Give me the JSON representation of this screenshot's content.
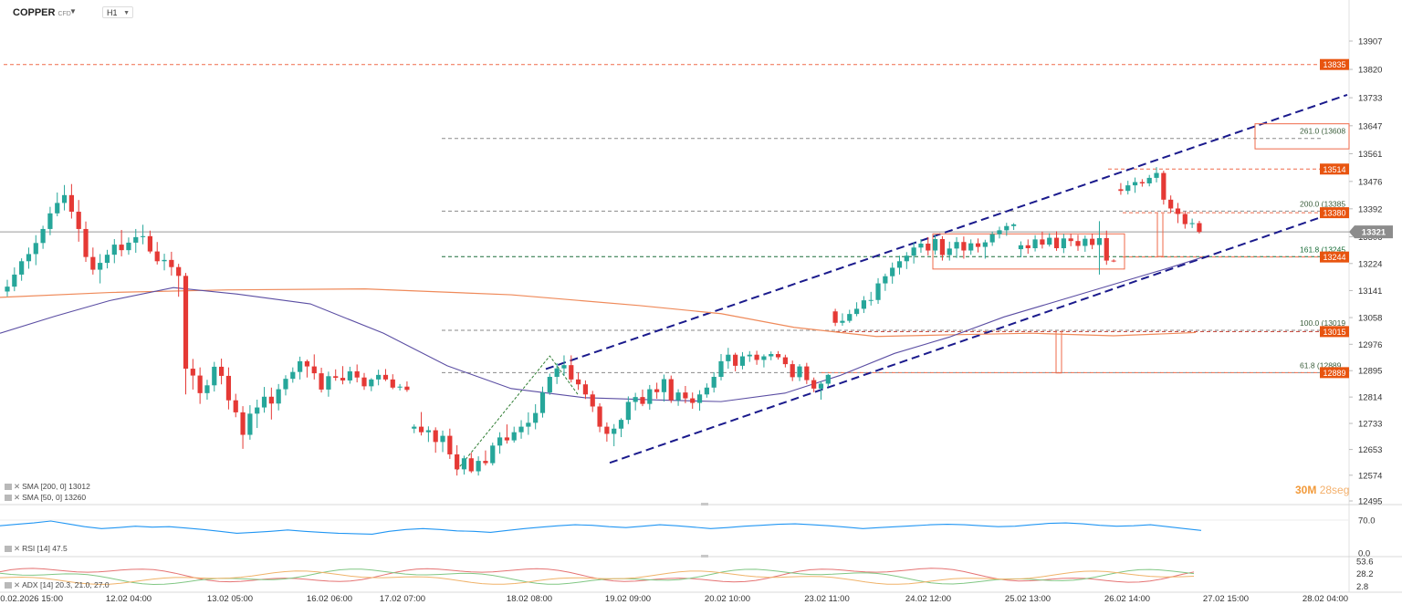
{
  "header": {
    "symbol": "COPPER",
    "symbol_sub": "CFD",
    "timeframe": "H1"
  },
  "indicators": {
    "sma200": "SMA [200, 0]  13012",
    "sma50": "SMA [50, 0]  13260",
    "rsi": "RSI [14]  47.5",
    "adx": "ADX [14]  20.3, 21.0, 27.0"
  },
  "countdown": {
    "main": "30M",
    "sec": "28seg"
  },
  "colors": {
    "up": "#26a69a",
    "down": "#e53935",
    "sma200": "#ef8a5a",
    "sma50": "#5b4ea3",
    "channel": "#1a1a8c",
    "label_bg": "#e8540f",
    "rsi": "#2196f3"
  },
  "chart_data": {
    "type": "candlestick",
    "symbol": "COPPER",
    "timeframe": "H1",
    "y_ticks": [
      13907,
      13820,
      13733,
      13647,
      13561,
      13476,
      13392,
      13306,
      13224,
      13141,
      13058,
      12976,
      12895,
      12814,
      12733,
      12653,
      12574,
      12495
    ],
    "ylim": [
      12495,
      13907
    ],
    "x_labels": [
      "10.02.2026  15:00",
      "12.02  04:00",
      "13.02  05:00",
      "16.02  06:00",
      "17.02  07:00",
      "18.02  08:00",
      "19.02  09:00",
      "20.02  10:00",
      "23.02  11:00",
      "24.02  12:00",
      "25.02  13:00",
      "26.02  14:00",
      "27.02  15:00",
      "28.02  04:00"
    ],
    "last_price": 13321,
    "price_labels": [
      {
        "value": 13835,
        "text": "13835"
      },
      {
        "value": 13514,
        "text": "13514"
      },
      {
        "value": 13380,
        "text": "13380"
      },
      {
        "value": 13244,
        "text": "13244"
      },
      {
        "value": 13015,
        "text": "13015"
      },
      {
        "value": 12889,
        "text": "12889"
      }
    ],
    "fib_levels": [
      {
        "ratio": "261.0",
        "text": "261.0 (13608",
        "value": 13608
      },
      {
        "ratio": "200.0",
        "text": "200.0 (13385",
        "value": 13385
      },
      {
        "ratio": "161.8",
        "text": "161.8 (13245",
        "value": 13245
      },
      {
        "ratio": "100.0",
        "text": "100.0 (13019",
        "value": 13019
      },
      {
        "ratio": "61.8",
        "text": "61.8 (12889",
        "value": 12889
      }
    ],
    "sma": [
      {
        "name": "SMA [200, 0]",
        "value": 13012
      },
      {
        "name": "SMA [50, 0]",
        "value": 13260
      }
    ],
    "rsi": {
      "period": 14,
      "value": 47.5,
      "ticks": [
        "70.0",
        "0.0"
      ]
    },
    "adx": {
      "period": 14,
      "values": [
        20.3,
        21.0,
        27.0
      ],
      "ticks": [
        "53.6",
        "28.2",
        "2.8"
      ]
    },
    "candles": [
      [
        13138,
        13174,
        13123,
        13153
      ],
      [
        13153,
        13212,
        13139,
        13190
      ],
      [
        13190,
        13240,
        13171,
        13231
      ],
      [
        13231,
        13273,
        13208,
        13253
      ],
      [
        13253,
        13311,
        13219,
        13287
      ],
      [
        13287,
        13340,
        13269,
        13330
      ],
      [
        13330,
        13398,
        13311,
        13378
      ],
      [
        13378,
        13442,
        13369,
        13410
      ],
      [
        13410,
        13465,
        13387,
        13434
      ],
      [
        13434,
        13468,
        13362,
        13383
      ],
      [
        13383,
        13419,
        13291,
        13330
      ],
      [
        13330,
        13353,
        13229,
        13244
      ],
      [
        13244,
        13273,
        13190,
        13205
      ],
      [
        13205,
        13253,
        13163,
        13226
      ],
      [
        13226,
        13266,
        13209,
        13251
      ],
      [
        13251,
        13299,
        13225,
        13282
      ],
      [
        13282,
        13327,
        13246,
        13265
      ],
      [
        13265,
        13304,
        13251,
        13288
      ],
      [
        13288,
        13330,
        13257,
        13305
      ],
      [
        13305,
        13343,
        13283,
        13308
      ],
      [
        13308,
        13325,
        13255,
        13261
      ],
      [
        13261,
        13290,
        13221,
        13231
      ],
      [
        13231,
        13254,
        13203,
        13235
      ],
      [
        13235,
        13260,
        13187,
        13213
      ],
      [
        13213,
        13223,
        13122,
        13186
      ],
      [
        13186,
        13195,
        12822,
        12901
      ],
      [
        12901,
        12931,
        12837,
        12880
      ],
      [
        12880,
        12905,
        12793,
        12826
      ],
      [
        12826,
        12867,
        12806,
        12850
      ],
      [
        12850,
        12922,
        12831,
        12907
      ],
      [
        12907,
        12932,
        12853,
        12879
      ],
      [
        12879,
        12905,
        12776,
        12804
      ],
      [
        12804,
        12824,
        12752,
        12767
      ],
      [
        12767,
        12786,
        12655,
        12698
      ],
      [
        12698,
        12789,
        12683,
        12763
      ],
      [
        12763,
        12806,
        12719,
        12782
      ],
      [
        12782,
        12845,
        12766,
        12815
      ],
      [
        12815,
        12843,
        12745,
        12794
      ],
      [
        12794,
        12854,
        12773,
        12838
      ],
      [
        12838,
        12881,
        12819,
        12870
      ],
      [
        12870,
        12905,
        12858,
        12891
      ],
      [
        12891,
        12938,
        12868,
        12924
      ],
      [
        12924,
        12929,
        12874,
        12908
      ],
      [
        12908,
        12945,
        12868,
        12887
      ],
      [
        12887,
        12904,
        12828,
        12837
      ],
      [
        12837,
        12892,
        12815,
        12878
      ],
      [
        12878,
        12899,
        12864,
        12873
      ],
      [
        12873,
        12909,
        12853,
        12865
      ],
      [
        12865,
        12907,
        12855,
        12893
      ],
      [
        12893,
        12914,
        12859,
        12874
      ],
      [
        12874,
        12888,
        12836,
        12847
      ],
      [
        12847,
        12872,
        12832,
        12868
      ],
      [
        12868,
        12898,
        12850,
        12882
      ],
      [
        12882,
        12900,
        12863,
        12868
      ],
      [
        12868,
        12884,
        12838,
        12843
      ],
      [
        12843,
        12854,
        12834,
        12846
      ],
      [
        12846,
        12862,
        12830,
        12836
      ],
      [
        12717,
        12730,
        12703,
        12723
      ],
      [
        12723,
        12768,
        12696,
        12706
      ],
      [
        12706,
        12724,
        12676,
        12712
      ],
      [
        12712,
        12721,
        12643,
        12676
      ],
      [
        12676,
        12711,
        12645,
        12695
      ],
      [
        12695,
        12717,
        12624,
        12638
      ],
      [
        12638,
        12666,
        12573,
        12592
      ],
      [
        12592,
        12634,
        12576,
        12626
      ],
      [
        12626,
        12643,
        12581,
        12586
      ],
      [
        12586,
        12632,
        12573,
        12618
      ],
      [
        12618,
        12650,
        12604,
        12611
      ],
      [
        12611,
        12674,
        12604,
        12665
      ],
      [
        12665,
        12706,
        12640,
        12690
      ],
      [
        12690,
        12730,
        12671,
        12681
      ],
      [
        12681,
        12723,
        12674,
        12706
      ],
      [
        12706,
        12743,
        12686,
        12723
      ],
      [
        12723,
        12767,
        12698,
        12735
      ],
      [
        12735,
        12792,
        12715,
        12765
      ],
      [
        12765,
        12846,
        12751,
        12828
      ],
      [
        12828,
        12886,
        12821,
        12876
      ],
      [
        12876,
        12918,
        12854,
        12902
      ],
      [
        12902,
        12942,
        12880,
        12912
      ],
      [
        12912,
        12942,
        12859,
        12868
      ],
      [
        12868,
        12889,
        12836,
        12853
      ],
      [
        12853,
        12865,
        12808,
        12822
      ],
      [
        12822,
        12833,
        12768,
        12785
      ],
      [
        12785,
        12795,
        12706,
        12723
      ],
      [
        12723,
        12736,
        12677,
        12701
      ],
      [
        12701,
        12731,
        12663,
        12717
      ],
      [
        12717,
        12749,
        12691,
        12744
      ],
      [
        12744,
        12816,
        12731,
        12799
      ],
      [
        12799,
        12827,
        12773,
        12814
      ],
      [
        12814,
        12837,
        12786,
        12793
      ],
      [
        12793,
        12851,
        12775,
        12838
      ],
      [
        12838,
        12858,
        12809,
        12829
      ],
      [
        12829,
        12883,
        12800,
        12869
      ],
      [
        12869,
        12880,
        12796,
        12804
      ],
      [
        12804,
        12838,
        12787,
        12828
      ],
      [
        12828,
        12848,
        12795,
        12810
      ],
      [
        12810,
        12828,
        12778,
        12796
      ],
      [
        12796,
        12835,
        12772,
        12822
      ],
      [
        12822,
        12856,
        12812,
        12843
      ],
      [
        12843,
        12890,
        12828,
        12876
      ],
      [
        12876,
        12946,
        12865,
        12924
      ],
      [
        12924,
        12965,
        12901,
        12944
      ],
      [
        12944,
        12950,
        12893,
        12910
      ],
      [
        12910,
        12952,
        12899,
        12939
      ],
      [
        12939,
        12955,
        12922,
        12944
      ],
      [
        12944,
        12956,
        12913,
        12928
      ],
      [
        12928,
        12945,
        12905,
        12939
      ],
      [
        12939,
        12954,
        12927,
        12946
      ],
      [
        12946,
        12955,
        12929,
        12936
      ],
      [
        12936,
        12944,
        12905,
        12915
      ],
      [
        12915,
        12926,
        12863,
        12875
      ],
      [
        12875,
        12915,
        12863,
        12908
      ],
      [
        12908,
        12919,
        12854,
        12866
      ],
      [
        12866,
        12874,
        12829,
        12840
      ],
      [
        12840,
        12862,
        12806,
        12855
      ],
      [
        12855,
        12885,
        12846,
        12882
      ],
      [
        13077,
        13085,
        13032,
        13042
      ],
      [
        13042,
        13071,
        13033,
        13048
      ],
      [
        13048,
        13082,
        13042,
        13069
      ],
      [
        13069,
        13105,
        13062,
        13085
      ],
      [
        13085,
        13124,
        13072,
        13111
      ],
      [
        13111,
        13137,
        13095,
        13112
      ],
      [
        13112,
        13179,
        13100,
        13163
      ],
      [
        13163,
        13193,
        13140,
        13185
      ],
      [
        13185,
        13227,
        13162,
        13211
      ],
      [
        13211,
        13248,
        13190,
        13231
      ],
      [
        13231,
        13259,
        13207,
        13248
      ],
      [
        13248,
        13289,
        13224,
        13273
      ],
      [
        13273,
        13299,
        13257,
        13285
      ],
      [
        13285,
        13305,
        13249,
        13264
      ],
      [
        13264,
        13312,
        13251,
        13299
      ],
      [
        13299,
        13308,
        13233,
        13250
      ],
      [
        13250,
        13291,
        13233,
        13270
      ],
      [
        13270,
        13305,
        13241,
        13290
      ],
      [
        13290,
        13307,
        13239,
        13264
      ],
      [
        13264,
        13298,
        13251,
        13286
      ],
      [
        13286,
        13301,
        13258,
        13275
      ],
      [
        13275,
        13297,
        13239,
        13289
      ],
      [
        13289,
        13322,
        13278,
        13314
      ],
      [
        13314,
        13337,
        13301,
        13326
      ],
      [
        13326,
        13349,
        13309,
        13339
      ],
      [
        13339,
        13348,
        13327,
        13344
      ],
      [
        13268,
        13292,
        13243,
        13280
      ],
      [
        13280,
        13298,
        13254,
        13271
      ],
      [
        13271,
        13311,
        13261,
        13298
      ],
      [
        13298,
        13322,
        13270,
        13282
      ],
      [
        13282,
        13317,
        13276,
        13303
      ],
      [
        13303,
        13323,
        13263,
        13271
      ],
      [
        13271,
        13315,
        13256,
        13301
      ],
      [
        13301,
        13316,
        13277,
        13293
      ],
      [
        13293,
        13312,
        13263,
        13278
      ],
      [
        13278,
        13310,
        13260,
        13300
      ],
      [
        13300,
        13316,
        13268,
        13281
      ],
      [
        13281,
        13354,
        13190,
        13302
      ],
      [
        13302,
        13325,
        13220,
        13233
      ],
      [
        13233,
        13237,
        13228,
        13231
      ],
      [
        13452,
        13471,
        13435,
        13447
      ],
      [
        13447,
        13478,
        13436,
        13464
      ],
      [
        13464,
        13488,
        13441,
        13474
      ],
      [
        13474,
        13483,
        13460,
        13470
      ],
      [
        13470,
        13496,
        13461,
        13487
      ],
      [
        13487,
        13520,
        13473,
        13502
      ],
      [
        13502,
        13509,
        13405,
        13420
      ],
      [
        13420,
        13433,
        13380,
        13393
      ],
      [
        13393,
        13410,
        13348,
        13376
      ],
      [
        13376,
        13384,
        13331,
        13345
      ],
      [
        13345,
        13362,
        13333,
        13348
      ],
      [
        13348,
        13355,
        13316,
        13321
      ]
    ]
  }
}
